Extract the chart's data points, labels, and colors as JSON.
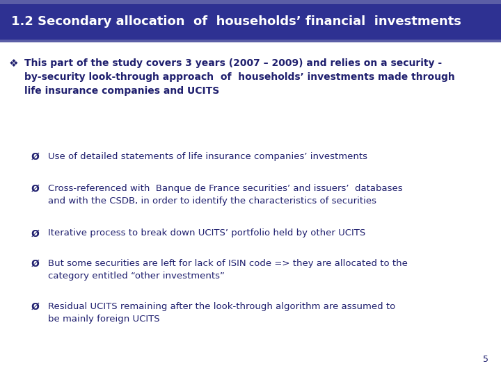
{
  "title": "1.2 Secondary allocation  of  households’ financial  investments",
  "title_bg_color": "#2E3192",
  "title_text_color": "#FFFFFF",
  "bg_color": "#FFFFFF",
  "accent_bar_color": "#5B5EA6",
  "main_bullet_symbol": "❖",
  "main_bullet_text_line1": "This part of the study covers 3 years (2007 – 2009) and relies on a security -",
  "main_bullet_text_line2": "by-security look-through approach  of  households’ investments made through",
  "main_bullet_text_line3": "life insurance companies and UCITS",
  "sub_bullets": [
    "Use of detailed statements of life insurance companies’ investments",
    "Cross-referenced with  Banque de France securities’ and issuers’  databases\nand with the CSDB, in order to identify the characteristics of securities",
    "Iterative process to break down UCITS’ portfolio held by other UCITS",
    "But some securities are left for lack of ISIN code => they are allocated to the\ncategory entitled “other investments”",
    "Residual UCITS remaining after the look-through algorithm are assumed to\nbe mainly foreign UCITS"
  ],
  "sub_bullet_symbol": "Ø",
  "page_number": "5",
  "main_text_color": "#1F1F6E",
  "title_font_size": 13,
  "main_font_size": 10,
  "sub_font_size": 9.5
}
